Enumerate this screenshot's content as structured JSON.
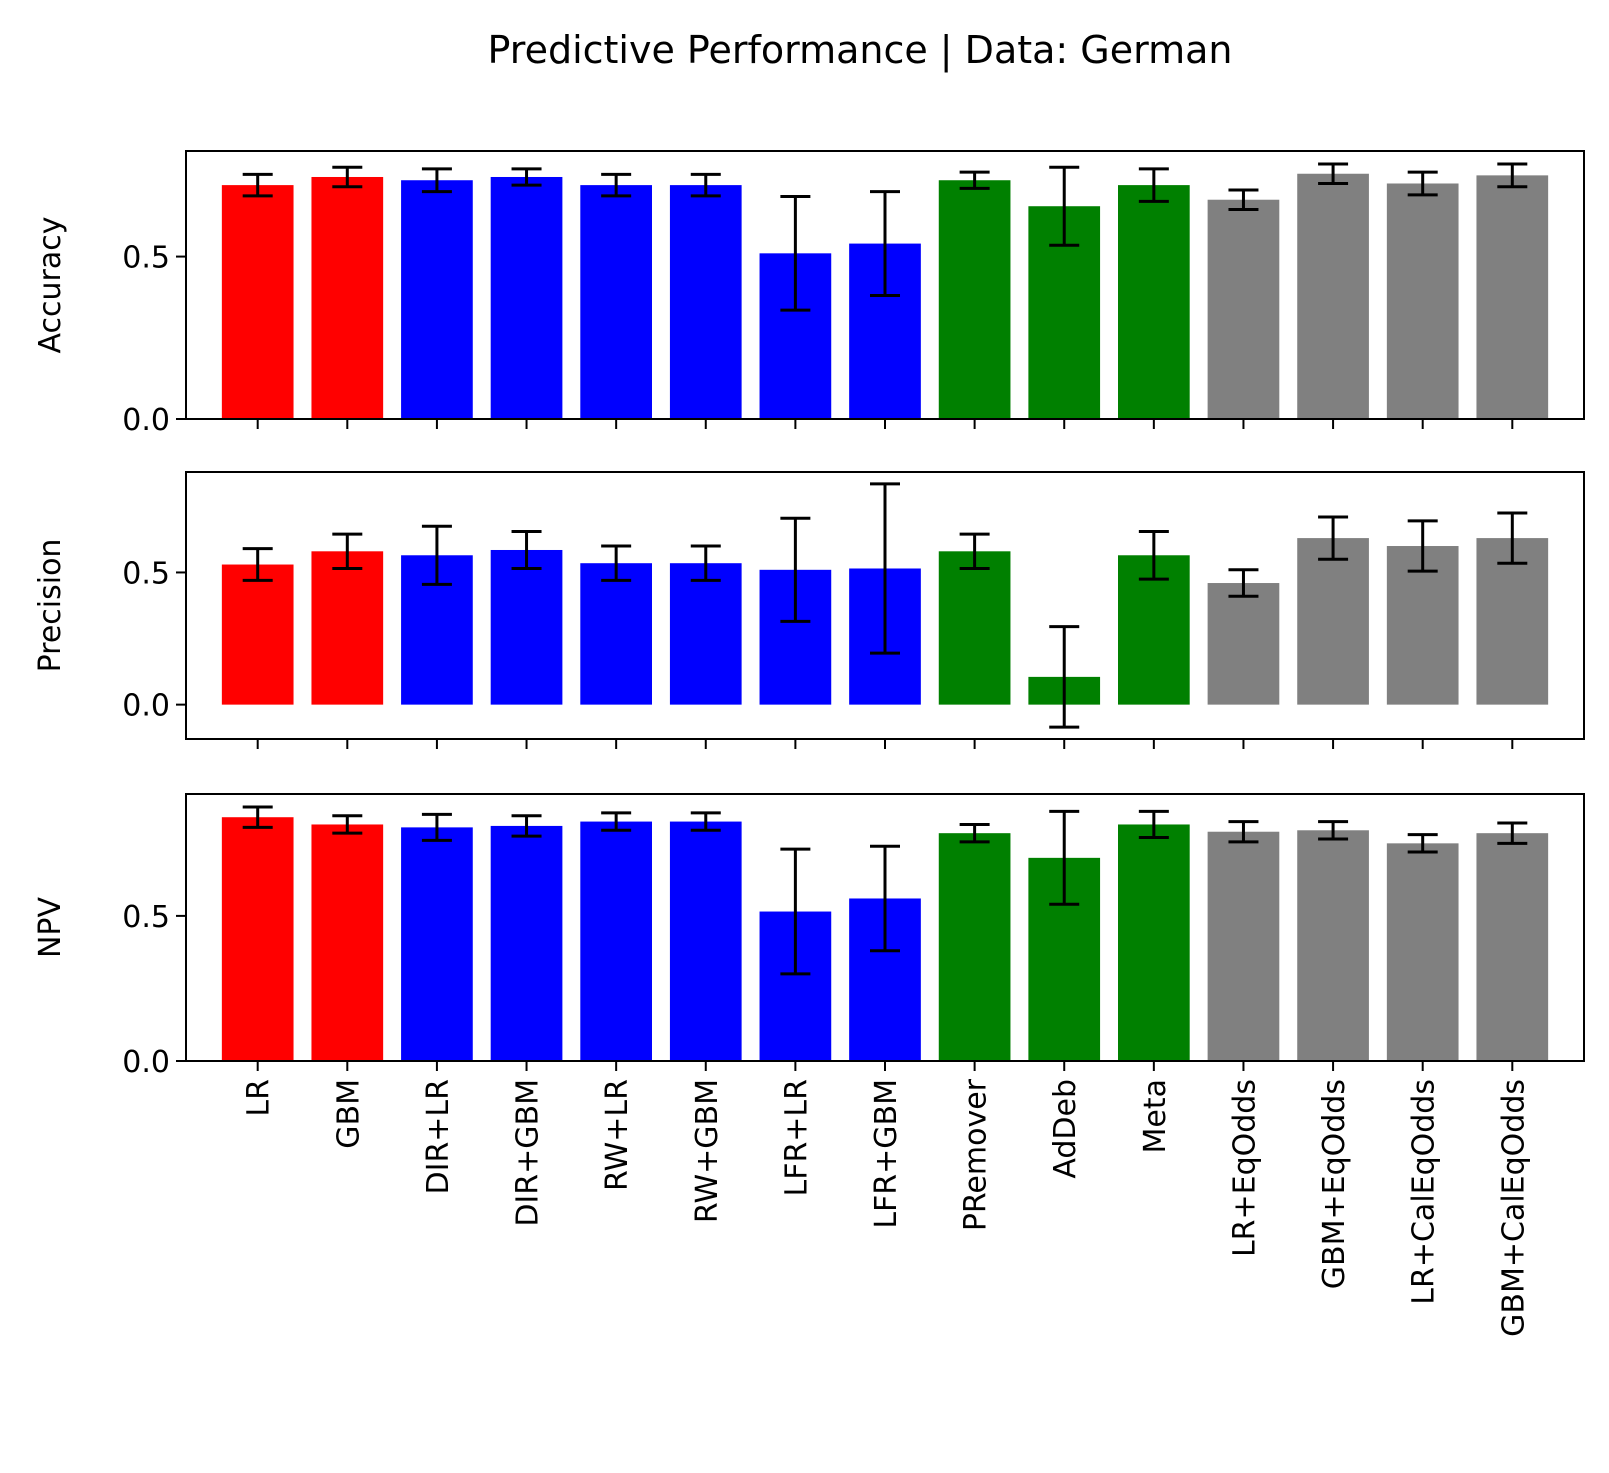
{
  "title": "Predictive Performance | Data: German",
  "chart_data": {
    "type": "bar",
    "categories": [
      "LR",
      "GBM",
      "DIR+LR",
      "DIR+GBM",
      "RW+LR",
      "RW+GBM",
      "LFR+LR",
      "LFR+GBM",
      "PRemover",
      "AdDeb",
      "Meta",
      "LR+EqOdds",
      "GBM+EqOdds",
      "LR+CalEqOdds",
      "GBM+CalEqOdds"
    ],
    "category_colors": [
      "#ff0000",
      "#ff0000",
      "#0000ff",
      "#0000ff",
      "#0000ff",
      "#0000ff",
      "#0000ff",
      "#0000ff",
      "#008000",
      "#008000",
      "#008000",
      "#808080",
      "#808080",
      "#808080",
      "#808080"
    ],
    "panels": [
      {
        "ylabel": "Accuracy",
        "ylim": [
          0,
          0.825
        ],
        "yticks": [
          0.0,
          0.5
        ],
        "values": [
          0.72,
          0.745,
          0.735,
          0.745,
          0.72,
          0.72,
          0.51,
          0.54,
          0.735,
          0.655,
          0.72,
          0.675,
          0.755,
          0.725,
          0.75
        ],
        "error": [
          0.033,
          0.03,
          0.035,
          0.025,
          0.033,
          0.033,
          0.175,
          0.16,
          0.025,
          0.12,
          0.05,
          0.03,
          0.03,
          0.035,
          0.035
        ]
      },
      {
        "ylabel": "Precision",
        "ylim": [
          -0.13,
          0.88
        ],
        "yticks": [
          0.0,
          0.5
        ],
        "values": [
          0.53,
          0.58,
          0.565,
          0.585,
          0.535,
          0.535,
          0.51,
          0.515,
          0.58,
          0.105,
          0.565,
          0.46,
          0.63,
          0.6,
          0.63
        ],
        "error": [
          0.06,
          0.065,
          0.11,
          0.07,
          0.065,
          0.065,
          0.195,
          0.32,
          0.065,
          0.19,
          0.09,
          0.05,
          0.08,
          0.095,
          0.095
        ]
      },
      {
        "ylabel": "NPV",
        "ylim": [
          0,
          0.92
        ],
        "yticks": [
          0.0,
          0.5
        ],
        "values": [
          0.84,
          0.815,
          0.805,
          0.81,
          0.825,
          0.825,
          0.515,
          0.56,
          0.785,
          0.7,
          0.815,
          0.79,
          0.795,
          0.75,
          0.785
        ],
        "error": [
          0.035,
          0.03,
          0.045,
          0.035,
          0.03,
          0.03,
          0.215,
          0.18,
          0.03,
          0.16,
          0.045,
          0.035,
          0.03,
          0.03,
          0.035
        ]
      }
    ]
  }
}
